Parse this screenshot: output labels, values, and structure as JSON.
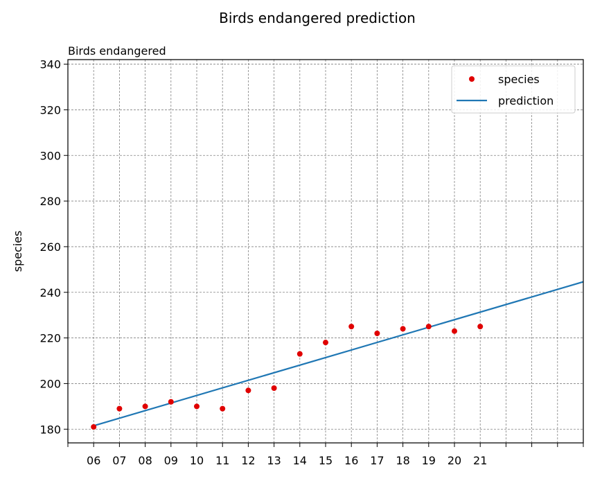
{
  "chart_data": {
    "type": "line",
    "title": "Birds endangered prediction",
    "subtitle": "Birds endangered",
    "xlabel": "",
    "ylabel": "species",
    "xlim": [
      5,
      25
    ],
    "ylim": [
      174,
      342
    ],
    "x_ticks": [
      5,
      6,
      7,
      8,
      9,
      10,
      11,
      12,
      13,
      14,
      15,
      16,
      17,
      18,
      19,
      20,
      21,
      22,
      23,
      24,
      25
    ],
    "x_tick_labels": [
      "",
      "06",
      "07",
      "08",
      "09",
      "10",
      "11",
      "12",
      "13",
      "14",
      "15",
      "16",
      "17",
      "18",
      "19",
      "20",
      "21",
      "",
      "",
      "",
      ""
    ],
    "y_ticks": [
      180,
      200,
      220,
      240,
      260,
      280,
      300,
      320,
      340
    ],
    "grid": true,
    "legend_position": "top-right",
    "series": [
      {
        "name": "species",
        "kind": "scatter",
        "color": "#e00000",
        "x": [
          6,
          7,
          8,
          9,
          10,
          11,
          12,
          13,
          14,
          15,
          16,
          17,
          18,
          19,
          20,
          21
        ],
        "values": [
          181,
          189,
          190,
          192,
          190,
          189,
          197,
          198,
          213,
          218,
          225,
          222,
          224,
          225,
          223,
          225
        ]
      },
      {
        "name": "prediction",
        "kind": "line",
        "color": "#1f77b4",
        "x": [
          6,
          25
        ],
        "values": [
          181.5,
          244.6
        ]
      }
    ]
  }
}
